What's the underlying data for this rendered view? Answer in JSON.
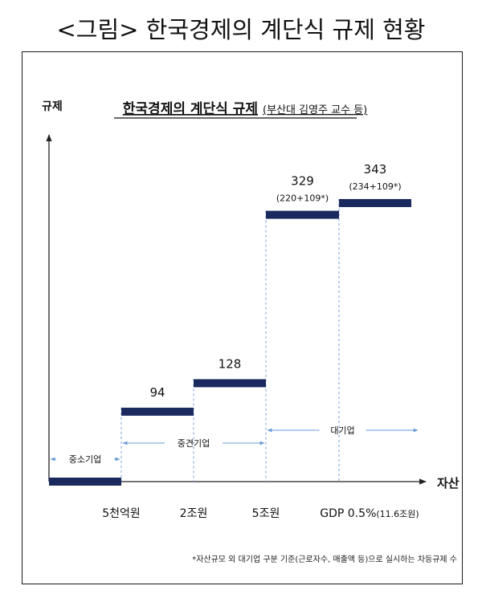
{
  "caption": "<그림> 한국경제의 계단식 규제 현황",
  "chart_data": {
    "type": "bar",
    "title": "한국경제의 계단식 규제",
    "subtitle": "(부산대 김영주 교수 등)",
    "ylabel": "규제",
    "xlabel": "자산",
    "categories": [
      "5천억원",
      "2조원",
      "5조원",
      "GDP 0.5%(11.6조원)"
    ],
    "steps": [
      {
        "value": 0,
        "label": ""
      },
      {
        "value": 94,
        "label": "94"
      },
      {
        "value": 128,
        "label": "128"
      },
      {
        "value": 329,
        "label": "329",
        "sublabel": "(220+109*)"
      },
      {
        "value": 343,
        "label": "343",
        "sublabel": "(234+109*)"
      }
    ],
    "ranges": [
      {
        "label": "중소기업",
        "from": -1,
        "to": 0
      },
      {
        "label": "중견기업",
        "from": 0,
        "to": 2
      },
      {
        "label": "대기업",
        "from": 2,
        "to": 4
      }
    ],
    "ylim": [
      0,
      400
    ],
    "colors": {
      "bar": "#1b2a5e",
      "arrow": "#6a9bd8",
      "axis": "#222222",
      "dash": "#7aa0d8"
    }
  },
  "footnote": "*자산규모 외 대기업 구분 기준(근로자수, 매출액 등)으로 실시하는 차등규제 수"
}
